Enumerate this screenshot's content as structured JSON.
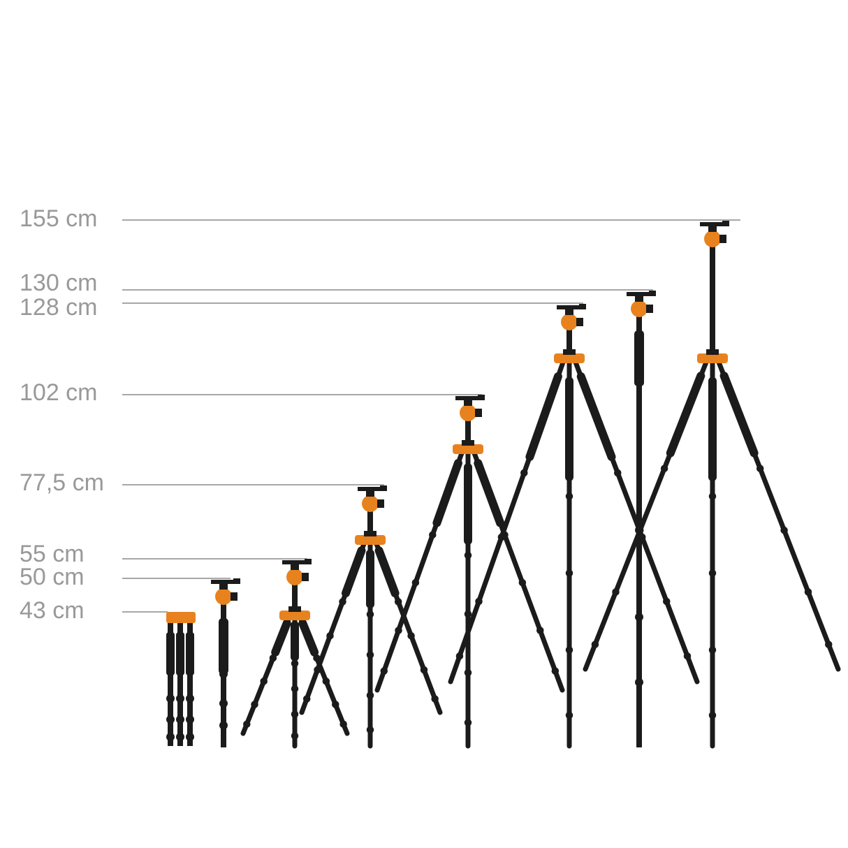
{
  "height_labels": [
    "155 cm",
    "130 cm",
    "128 cm",
    "102 cm",
    "77,5 cm",
    "55 cm",
    "50 cm",
    "43 cm"
  ]
}
